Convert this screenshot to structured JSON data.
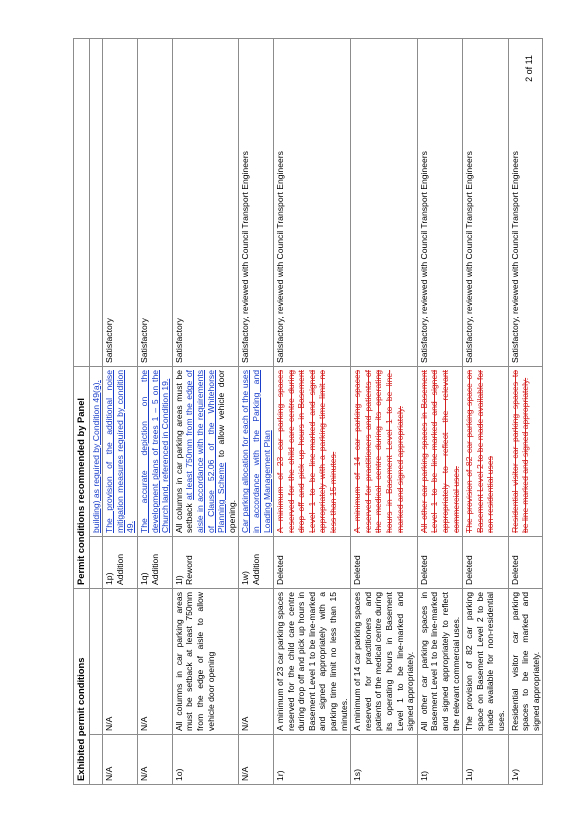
{
  "header": {
    "exhibited": "Exhibited permit conditions",
    "panel": "Permit conditions recommended by Panel"
  },
  "rows": [
    {
      "ref": "",
      "exhibited": "",
      "action_ref": "",
      "action": "",
      "panel_blue": "building) as required by Condition 49(a).",
      "comment": ""
    },
    {
      "ref": "N/A",
      "exhibited": "N/A",
      "action_ref": "1p)",
      "action": "Addition",
      "panel_blue": "The provision of the additional noise mitigation measures required by condition 49.",
      "comment": "Satisfactory"
    },
    {
      "ref": "N/A",
      "exhibited": "N/A",
      "action_ref": "1q)",
      "action": "Addition",
      "panel_blue": "The accurate depiction on the development plans of trees 1 – 5 on the Church land, referenced in Condition 19.",
      "comment": "Satisfactory"
    },
    {
      "ref": "1o)",
      "exhibited": "All columns in car parking areas must be setback at least 750mm from the edge of aisle to allow vehicle door opening",
      "action_ref": "1l)",
      "action": "Reword",
      "panel_a": "All columns in car parking areas must be setback ",
      "panel_b": "at least 750mm from the edge of aisle in accordance with the requirements of Clause 52.06 of the Whitehorse Planning Scheme",
      "panel_c": " to allow vehicle door opening.",
      "comment": "Satisfactory"
    },
    {
      "ref": "N/A",
      "exhibited": "N/A",
      "action_ref": "1w)",
      "action": "Addition",
      "panel_blue": "Car parking allocation for each of the uses in accordance with the Parking and Loading Management Plan",
      "comment": "Satisfactory, reviewed with Council Transport Engineers"
    },
    {
      "ref": "1r)",
      "exhibited": "A minimum of 23 car parking spaces reserved for the child care centre during drop off and pick up hours in Basement Level 1 to be line-marked and signed appropriately with a parking time limit no less than 15 minutes.",
      "action_ref": "",
      "action": "Deleted",
      "panel_red": "A minimum of 23 car parking spaces reserved for the child care centre during drop off and pick up hours in Basement Level 1 to be line-marked and signed appropriately with a parking time limit no less than 15 minutes.",
      "comment": "Satisfactory, reviewed with Council Transport Engineers"
    },
    {
      "ref": "1s)",
      "exhibited": "A minimum of 14 car parking spaces reserved for practitioners and patients of the medical centre during its operating hours in Basement Level 1 to be line-marked and signed appropriately.",
      "action_ref": "",
      "action": "Deleted",
      "panel_red": "A minimum of 14 car parking spaces reserved for practitioners and patients of the medical centre during its operating hours in Basement Level 1 to be line-marked and signed appropriately.",
      "comment": ""
    },
    {
      "ref": "1t)",
      "exhibited": "All other car parking spaces in Basement Level 1 to be line-marked and signed appropriately to reflect the relevant commercial uses.",
      "action_ref": "",
      "action": "Deleted",
      "panel_red": "All other car parking spaces in Basement Level 1 to be line-marked and signed appropriately to reflect the relevant commercial uses.",
      "comment": "Satisfactory, reviewed with Council Transport Engineers"
    },
    {
      "ref": "1u)",
      "exhibited": "The provision of 82 car parking space on Basement Level 2 to be made available for non-residential uses.",
      "action_ref": "",
      "action": "Deleted",
      "panel_red": "The provision of 82 car parking space on Basement Level 2 to be made available for non-residential uses",
      "comment": "Satisfactory, reviewed with Council Transport Engineers"
    },
    {
      "ref": "1v)",
      "exhibited": "Residential visitor car parking spaces to be line marked and signed appropriately.",
      "action_ref": "",
      "action": "Deleted",
      "panel_red": "Residential visitor car parking spaces to be line-marked and signed appropriately.",
      "comment": "Satisfactory, reviewed with Council Transport Engineers"
    }
  ],
  "page_number": "2 of 11"
}
